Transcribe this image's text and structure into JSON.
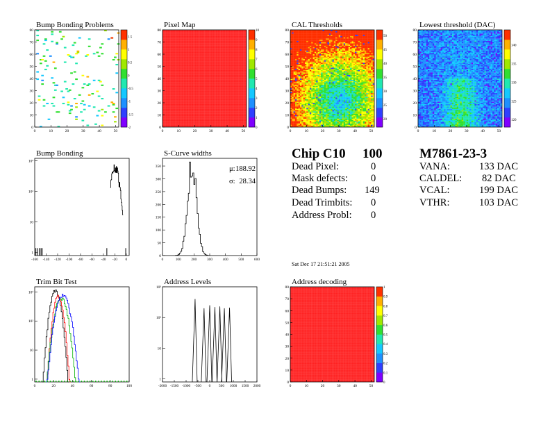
{
  "chart_data": [
    {
      "type": "heatmap",
      "title": "Bump Bonding Problems",
      "xlim": [
        0,
        52
      ],
      "ylim": [
        0,
        80
      ],
      "xticks": [
        "0",
        "10",
        "20",
        "30",
        "40",
        "50"
      ],
      "yticks": [
        "0",
        "10",
        "20",
        "30",
        "40",
        "50",
        "60",
        "70",
        "80"
      ],
      "zticks": [
        "-2",
        "-1.5",
        "-1",
        "-0.5",
        "0",
        "0.5",
        "1",
        "1.5"
      ],
      "zlim": [
        -2,
        1.75
      ],
      "colors": [
        "#7f00ff",
        "#2f3fff",
        "#1e90ff",
        "#14c8ff",
        "#20e8b0",
        "#30e030",
        "#a0e800",
        "#ffff00",
        "#ffb000",
        "#ff3000"
      ],
      "distribution": "sparse"
    },
    {
      "type": "heatmap",
      "title": "Pixel Map",
      "xlim": [
        0,
        52
      ],
      "ylim": [
        0,
        80
      ],
      "xticks": [
        "0",
        "10",
        "20",
        "30",
        "40",
        "50"
      ],
      "yticks": [
        "0",
        "10",
        "20",
        "30",
        "40",
        "50",
        "60",
        "70",
        "80"
      ],
      "zticks": [
        "0",
        "1",
        "2",
        "3",
        "4",
        "5",
        "6",
        "7",
        "8",
        "9",
        "10"
      ],
      "zlim": [
        0,
        10
      ],
      "colors": [
        "#7f00ff",
        "#2f3fff",
        "#1e90ff",
        "#14c8ff",
        "#20e8b0",
        "#30e030",
        "#a0e800",
        "#ffff00",
        "#ffb000",
        "#ff3000"
      ],
      "fill": "#ff2020"
    },
    {
      "type": "heatmap",
      "title": "CAL Thresholds",
      "xlim": [
        0,
        52
      ],
      "ylim": [
        0,
        80
      ],
      "xticks": [
        "0",
        "10",
        "20",
        "30",
        "40",
        "50"
      ],
      "yticks": [
        "0",
        "10",
        "20",
        "30",
        "40",
        "50",
        "60",
        "70",
        "80"
      ],
      "zticks": [
        "20",
        "25",
        "30",
        "35",
        "40",
        "45",
        "50"
      ],
      "zlim": [
        17,
        52
      ],
      "colors": [
        "#7f00ff",
        "#2f3fff",
        "#1e90ff",
        "#14c8ff",
        "#20e8b0",
        "#30e030",
        "#a0e800",
        "#ffff00",
        "#ffb000",
        "#ff3000"
      ],
      "distribution": "cal"
    },
    {
      "type": "heatmap",
      "title": "Lowest threshold (DAC)",
      "xlim": [
        0,
        52
      ],
      "ylim": [
        0,
        80
      ],
      "xticks": [
        "0",
        "10",
        "20",
        "30",
        "40",
        "50"
      ],
      "yticks": [
        "0",
        "10",
        "20",
        "30",
        "40",
        "50",
        "60",
        "70",
        "80"
      ],
      "zticks": [
        "120",
        "125",
        "130",
        "135",
        "140"
      ],
      "zlim": [
        118,
        144
      ],
      "colors": [
        "#7f00ff",
        "#2f3fff",
        "#1e90ff",
        "#14c8ff",
        "#20e8b0",
        "#30e030",
        "#a0e800",
        "#ffff00",
        "#ffb000",
        "#ff3000"
      ],
      "distribution": "lowest"
    },
    {
      "type": "histogram",
      "title": "Bump Bonding",
      "xlim": [
        -160,
        5
      ],
      "xticks": [
        "-160",
        "-140",
        "-120",
        "-100",
        "-80",
        "-60",
        "-40",
        "-20",
        "0"
      ],
      "yscale": "log",
      "ylim": [
        0.8,
        1200
      ],
      "yticks": [
        "1",
        "10",
        "10²",
        "10³"
      ],
      "series": [
        {
          "color": "#000000",
          "bins": [
            [
              -160,
              -28,
              1
            ],
            [
              -28,
              -24,
              200
            ],
            [
              -24,
              -20,
              600
            ],
            [
              -20,
              -18,
              400
            ],
            [
              -18,
              -15,
              350
            ],
            [
              -15,
              -12,
              260
            ],
            [
              -12,
              -9,
              120
            ],
            [
              -9,
              -7,
              30
            ],
            [
              -7,
              -5,
              5
            ]
          ],
          "spikes": [
            [
              -158,
              1
            ],
            [
              -155,
              1
            ],
            [
              -152,
              1
            ],
            [
              -149,
              1
            ],
            [
              -147,
              1
            ],
            [
              -34,
              1
            ],
            [
              -1,
              1
            ]
          ]
        }
      ]
    },
    {
      "type": "histogram",
      "title": "S-Curve widths",
      "xlim": [
        0,
        600
      ],
      "xticks": [
        "0",
        "100",
        "200",
        "300",
        "400",
        "500",
        "600"
      ],
      "ylim": [
        0,
        380
      ],
      "yticks": [
        "0",
        "50",
        "100",
        "150",
        "200",
        "250",
        "300",
        "350"
      ],
      "stats": [
        {
          "label": "μ:",
          "value": "188.92"
        },
        {
          "label": "σ:",
          "value": "28.34"
        }
      ],
      "series": [
        {
          "color": "#000000",
          "mean": 188.92,
          "sigma": 28.34,
          "peak": 365,
          "bin": 7
        }
      ]
    },
    {
      "type": "histogram",
      "title": "Trim Bit Test",
      "xlim": [
        0,
        100
      ],
      "xticks": [
        "0",
        "20",
        "40",
        "60",
        "80",
        "100"
      ],
      "yscale": "log",
      "ylim": [
        0.8,
        1500
      ],
      "yticks": [
        "1",
        "10",
        "10²",
        "10³"
      ],
      "series": [
        {
          "color": "#000000",
          "mean": 22,
          "sigma": 3.5,
          "peak": 1100
        },
        {
          "color": "#ff0000",
          "mean": 25,
          "sigma": 3.2,
          "peak": 700
        },
        {
          "color": "#00b000",
          "mean": 28,
          "sigma": 4.2,
          "peak": 600
        },
        {
          "color": "#0000ff",
          "mean": 30,
          "sigma": 4.5,
          "peak": 800
        }
      ],
      "underflow_color": "#00cc00"
    },
    {
      "type": "histogram",
      "title": "Address Levels",
      "xlim": [
        -2000,
        2000
      ],
      "xticks": [
        "-2000",
        "-1500",
        "-1000",
        "-500",
        "0",
        "500",
        "1000",
        "1500",
        "2000"
      ],
      "yscale": "log",
      "ylim": [
        0.8,
        1000
      ],
      "yticks": [
        "1",
        "10",
        "10²",
        "10³"
      ],
      "peaks": [
        [
          -620,
          400
        ],
        [
          -240,
          200
        ],
        [
          0,
          250
        ],
        [
          220,
          220
        ],
        [
          430,
          230
        ],
        [
          620,
          200
        ],
        [
          840,
          210
        ]
      ]
    },
    {
      "type": "heatmap",
      "title": "Address decoding",
      "xlim": [
        0,
        52
      ],
      "ylim": [
        0,
        80
      ],
      "xticks": [
        "0",
        "10",
        "20",
        "30",
        "40",
        "50"
      ],
      "yticks": [
        "0",
        "10",
        "20",
        "30",
        "40",
        "50",
        "60",
        "70",
        "80"
      ],
      "zticks": [
        "0",
        "0.1",
        "0.2",
        "0.3",
        "0.4",
        "0.5",
        "0.6",
        "0.7",
        "0.8",
        "0.9",
        "1"
      ],
      "zlim": [
        0,
        1
      ],
      "colors": [
        "#7f00ff",
        "#2f3fff",
        "#1e90ff",
        "#14c8ff",
        "#20e8b0",
        "#30e030",
        "#a0e800",
        "#ffff00",
        "#ffb000",
        "#ff3000"
      ],
      "fill": "#ff2020"
    }
  ],
  "chip_summary": {
    "chip_label": "Chip C10",
    "chip_score": "100",
    "rows": [
      {
        "label": "Dead Pixel:",
        "value": "0"
      },
      {
        "label": "Mask defects:",
        "value": "0"
      },
      {
        "label": "Dead Bumps:",
        "value": "149"
      },
      {
        "label": "Dead Trimbits:",
        "value": "0"
      },
      {
        "label": "Address Probl:",
        "value": "0"
      }
    ]
  },
  "module_summary": {
    "module_label": "M7861-23-3",
    "rows": [
      {
        "label": "VANA:",
        "value": "133 DAC"
      },
      {
        "label": "CALDEL:",
        "value": "82 DAC"
      },
      {
        "label": "VCAL:",
        "value": "199 DAC"
      },
      {
        "label": "VTHR:",
        "value": "103 DAC"
      }
    ]
  },
  "timestamp": "Sat Dec 17 21:51:21 2005"
}
